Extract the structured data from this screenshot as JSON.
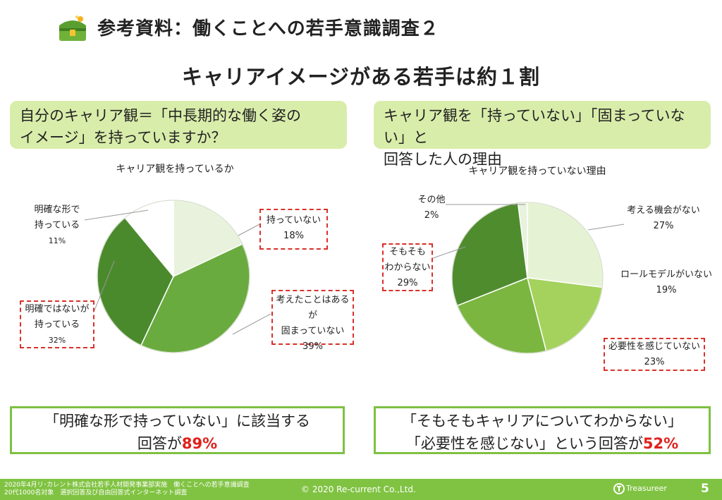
{
  "header": {
    "title": "参考資料：働くことへの若手意識調査２",
    "headline": "キャリアイメージがある若手は約１割"
  },
  "left": {
    "question_line1": "自分のキャリア観＝「中長期的な働く姿の",
    "question_line2": "イメージ」を持っていますか？",
    "result_line1": "「明確な形で持っていない」に該当する",
    "result_prefix": "回答が",
    "result_value": "89%"
  },
  "right": {
    "question_line1": "キャリア観を「持っていない」「固まっていない」と",
    "question_line2": "回答した人の理由",
    "result_line1": "「そもそもキャリアについてわからない」",
    "result_prefix": "「必要性を感じない」という回答が",
    "result_value": "52%"
  },
  "chart_data": [
    {
      "type": "pie",
      "title": "キャリア観を持っているか",
      "slices": [
        {
          "label": "持っていない",
          "value": 18,
          "display": "18%",
          "color": "#e8f2dc",
          "highlight": true
        },
        {
          "label": "考えたことはあるが固まっていない",
          "label_line1": "考えたことはあるが",
          "label_line2": "固まっていない",
          "value": 39,
          "display": "39%",
          "color": "#6aab3f",
          "highlight": true
        },
        {
          "label": "明確ではないが持っている",
          "label_line1": "明確ではないが",
          "label_line2": "持っている",
          "value": 32,
          "display": "32%",
          "color": "#4a8a2c",
          "highlight": true
        },
        {
          "label": "明確な形で持っている",
          "label_line1": "明確な形で",
          "label_line2": "持っている",
          "value": 11,
          "display": "11%",
          "color": "#ffffff",
          "highlight": false
        }
      ]
    },
    {
      "type": "pie",
      "title": "キャリア観を持っていない理由",
      "slices": [
        {
          "label": "考える機会がない",
          "value": 27,
          "display": "27%",
          "color": "#e6f2d4",
          "highlight": false
        },
        {
          "label": "ロールモデルがいない",
          "value": 19,
          "display": "19%",
          "color": "#a4d25d",
          "highlight": false
        },
        {
          "label": "必要性を感じていない",
          "value": 23,
          "display": "23%",
          "color": "#7bb641",
          "highlight": true
        },
        {
          "label": "そもそもわからない",
          "label_line1": "そもそも",
          "label_line2": "わからない",
          "value": 29,
          "display": "29%",
          "color": "#4f8c2e",
          "highlight": true
        },
        {
          "label": "その他",
          "value": 2,
          "display": "2%",
          "color": "#e8f2dc",
          "highlight": false
        }
      ]
    }
  ],
  "footer": {
    "note_line1": "2020年4月リ･カレント株式会社若手人材開発事業部実施　働くことへの若手意識調査",
    "note_line2": "20代1000名対象　選択回答及び自由回答式インターネット調査",
    "copyright": "© 2020 Re-current Co.,Ltd.",
    "brand": "Treasureer",
    "page_number": "5"
  },
  "colors": {
    "accent": "#80c342",
    "callout_border": "#d9312a",
    "result_highlight": "#e0201c",
    "question_bg": "#d9edaa"
  }
}
